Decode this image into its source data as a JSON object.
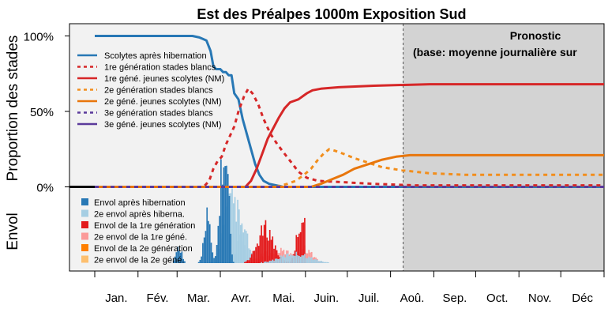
{
  "chart_data": {
    "type": "line",
    "title": "Est des Préalpes 1000m Exposition Sud",
    "ylabel_top": "Proportion des stades",
    "ylabel_bottom": "Envol",
    "yticks": [
      "100%",
      "50%",
      "0%"
    ],
    "ylim": [
      0,
      100
    ],
    "months": [
      "Jan.",
      "Fév.",
      "Mar.",
      "Avr.",
      "Mai.",
      "Juin.",
      "Juil.",
      "Aoû.",
      "Sep.",
      "Oct.",
      "Nov.",
      "Déc"
    ],
    "forecast": {
      "start_day": 221,
      "title_line1": "Pronostic",
      "title_line2": "(base: moyenne journalière sur"
    },
    "legend_top": [
      {
        "label": "Scolytes après hibernation",
        "color": "#2878b5",
        "dash": "solid"
      },
      {
        "label": "1re génération stades blancs",
        "color": "#d62728",
        "dash": "dot"
      },
      {
        "label": "1re géné. jeunes scolytes (NM)",
        "color": "#d62728",
        "dash": "solid"
      },
      {
        "label": "2e génération stades blancs",
        "color": "#f28e1c",
        "dash": "dot"
      },
      {
        "label": "2e géné. jeunes scolytes (NM)",
        "color": "#e8760c",
        "dash": "solid"
      },
      {
        "label": "3e génération stades blancs",
        "color": "#5b3a9b",
        "dash": "dot"
      },
      {
        "label": "3e géné. jeunes scolytes (NM)",
        "color": "#5b3a9b",
        "dash": "solid"
      }
    ],
    "legend_bottom": [
      {
        "label": "Envol après hibernation",
        "color": "#2878b5"
      },
      {
        "label": "2e envol après hiberna.",
        "color": "#a6cee3"
      },
      {
        "label": "Envol de la 1re génération",
        "color": "#e31a1c"
      },
      {
        "label": "2e envol de la 1re géné.",
        "color": "#fb9a99"
      },
      {
        "label": "Envol de la 2e génération",
        "color": "#ff7f00"
      },
      {
        "label": "2e envol de la 2e géné.",
        "color": "#fdbf6f"
      }
    ],
    "series": [
      {
        "name": "Scolytes après hibernation",
        "color": "#2878b5",
        "dash": "solid",
        "points": [
          [
            0,
            100
          ],
          [
            70,
            100
          ],
          [
            75,
            99
          ],
          [
            80,
            97
          ],
          [
            83,
            90
          ],
          [
            85,
            80
          ],
          [
            87,
            78
          ],
          [
            90,
            78
          ],
          [
            92,
            76
          ],
          [
            94,
            76
          ],
          [
            96,
            74
          ],
          [
            98,
            74
          ],
          [
            100,
            62
          ],
          [
            103,
            58
          ],
          [
            106,
            45
          ],
          [
            109,
            35
          ],
          [
            112,
            25
          ],
          [
            115,
            15
          ],
          [
            118,
            8
          ],
          [
            121,
            4
          ],
          [
            125,
            2
          ],
          [
            135,
            0
          ],
          [
            365,
            0
          ]
        ]
      },
      {
        "name": "1re génération stades blancs",
        "color": "#d62728",
        "dash": "dot",
        "points": [
          [
            0,
            0
          ],
          [
            78,
            0
          ],
          [
            82,
            4
          ],
          [
            85,
            12
          ],
          [
            88,
            17
          ],
          [
            91,
            20
          ],
          [
            94,
            28
          ],
          [
            97,
            34
          ],
          [
            100,
            40
          ],
          [
            103,
            50
          ],
          [
            107,
            60
          ],
          [
            110,
            65
          ],
          [
            113,
            62
          ],
          [
            117,
            55
          ],
          [
            121,
            45
          ],
          [
            126,
            35
          ],
          [
            131,
            28
          ],
          [
            136,
            22
          ],
          [
            141,
            16
          ],
          [
            146,
            10
          ],
          [
            152,
            6
          ],
          [
            160,
            4
          ],
          [
            180,
            3
          ],
          [
            200,
            2
          ],
          [
            230,
            1
          ],
          [
            365,
            1
          ]
        ]
      },
      {
        "name": "1re géné. jeunes scolytes (NM)",
        "color": "#d62728",
        "dash": "solid",
        "points": [
          [
            0,
            0
          ],
          [
            108,
            0
          ],
          [
            112,
            4
          ],
          [
            116,
            12
          ],
          [
            120,
            22
          ],
          [
            124,
            32
          ],
          [
            128,
            39
          ],
          [
            132,
            46
          ],
          [
            136,
            52
          ],
          [
            140,
            56
          ],
          [
            143,
            57
          ],
          [
            146,
            58
          ],
          [
            149,
            60
          ],
          [
            152,
            62
          ],
          [
            156,
            64
          ],
          [
            162,
            65
          ],
          [
            175,
            66
          ],
          [
            200,
            67
          ],
          [
            240,
            68
          ],
          [
            300,
            68
          ],
          [
            365,
            68
          ]
        ]
      },
      {
        "name": "2e génération stades blancs",
        "color": "#f28e1c",
        "dash": "dot",
        "points": [
          [
            0,
            0
          ],
          [
            130,
            0
          ],
          [
            138,
            2
          ],
          [
            144,
            4
          ],
          [
            150,
            8
          ],
          [
            155,
            12
          ],
          [
            160,
            18
          ],
          [
            164,
            22
          ],
          [
            168,
            25
          ],
          [
            172,
            24
          ],
          [
            178,
            22
          ],
          [
            186,
            19
          ],
          [
            196,
            16
          ],
          [
            206,
            13
          ],
          [
            220,
            11
          ],
          [
            240,
            9
          ],
          [
            265,
            8
          ],
          [
            365,
            8
          ]
        ]
      },
      {
        "name": "2e géné. jeunes scolytes (NM)",
        "color": "#e8760c",
        "dash": "solid",
        "points": [
          [
            0,
            0
          ],
          [
            155,
            0
          ],
          [
            162,
            2
          ],
          [
            170,
            5
          ],
          [
            178,
            8
          ],
          [
            186,
            12
          ],
          [
            196,
            15
          ],
          [
            206,
            18
          ],
          [
            216,
            20
          ],
          [
            226,
            21
          ],
          [
            240,
            21
          ],
          [
            300,
            21
          ],
          [
            365,
            21
          ]
        ]
      },
      {
        "name": "3e génération stades blancs",
        "color": "#5b3a9b",
        "dash": "dot",
        "points": [
          [
            0,
            0
          ],
          [
            365,
            0
          ]
        ]
      }
    ]
  }
}
